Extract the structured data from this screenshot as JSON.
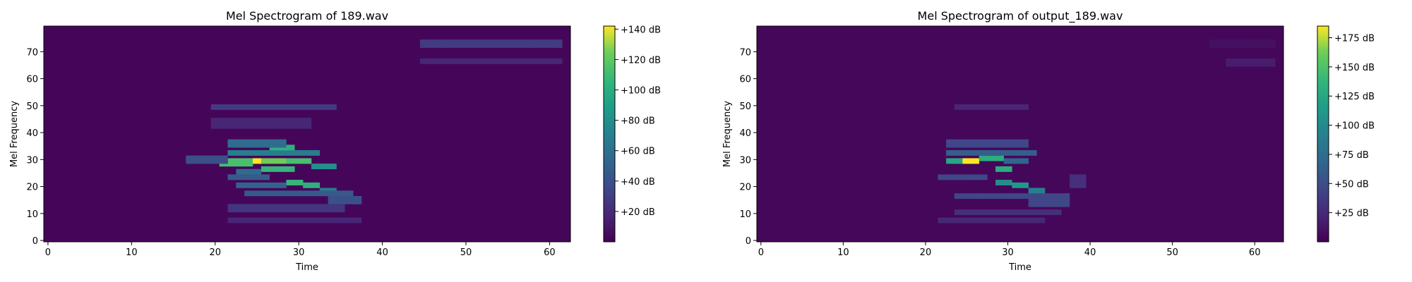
{
  "chart_data": [
    {
      "type": "heatmap",
      "title": "Mel Spectrogram of 189.wav",
      "xlabel": "Time",
      "ylabel": "Mel Frequency",
      "xlim": [
        -0.5,
        62.5
      ],
      "ylim": [
        -0.5,
        79.5
      ],
      "xticks": [
        0,
        10,
        20,
        30,
        40,
        50,
        60
      ],
      "yticks": [
        0,
        10,
        20,
        30,
        40,
        50,
        60,
        70
      ],
      "colormap": "viridis",
      "colorbar": {
        "min": 0,
        "max": 142,
        "ticks": [
          20,
          40,
          60,
          80,
          100,
          120,
          140
        ],
        "format": "+%d dB"
      },
      "background_db": 2,
      "blobs": [
        {
          "t": [
            21,
            25
          ],
          "f": [
            28,
            31
          ],
          "db": 100
        },
        {
          "t": [
            25,
            26
          ],
          "f": [
            29,
            31
          ],
          "db": 142
        },
        {
          "t": [
            26,
            29
          ],
          "f": [
            29,
            31
          ],
          "db": 110
        },
        {
          "t": [
            29,
            32
          ],
          "f": [
            29,
            31
          ],
          "db": 100
        },
        {
          "t": [
            32,
            35
          ],
          "f": [
            27,
            29
          ],
          "db": 70
        },
        {
          "t": [
            22,
            33
          ],
          "f": [
            32,
            34
          ],
          "db": 60
        },
        {
          "t": [
            27,
            30
          ],
          "f": [
            34,
            36
          ],
          "db": 90
        },
        {
          "t": [
            22,
            29
          ],
          "f": [
            35,
            38
          ],
          "db": 50
        },
        {
          "t": [
            26,
            30
          ],
          "f": [
            26,
            28
          ],
          "db": 95
        },
        {
          "t": [
            23,
            26
          ],
          "f": [
            25,
            27
          ],
          "db": 50
        },
        {
          "t": [
            22,
            27
          ],
          "f": [
            23,
            25
          ],
          "db": 40
        },
        {
          "t": [
            29,
            31
          ],
          "f": [
            21,
            23
          ],
          "db": 95
        },
        {
          "t": [
            31,
            33
          ],
          "f": [
            20,
            22
          ],
          "db": 90
        },
        {
          "t": [
            33,
            35
          ],
          "f": [
            18,
            20
          ],
          "db": 60
        },
        {
          "t": [
            23,
            29
          ],
          "f": [
            20,
            22
          ],
          "db": 45
        },
        {
          "t": [
            24,
            37
          ],
          "f": [
            17,
            19
          ],
          "db": 40
        },
        {
          "t": [
            34,
            38
          ],
          "f": [
            14,
            17
          ],
          "db": 35
        },
        {
          "t": [
            22,
            36
          ],
          "f": [
            11,
            14
          ],
          "db": 22
        },
        {
          "t": [
            22,
            38
          ],
          "f": [
            7,
            9
          ],
          "db": 15
        },
        {
          "t": [
            20,
            35
          ],
          "f": [
            49,
            51
          ],
          "db": 25
        },
        {
          "t": [
            20,
            32
          ],
          "f": [
            42,
            46
          ],
          "db": 15
        },
        {
          "t": [
            17,
            22
          ],
          "f": [
            29,
            32
          ],
          "db": 35
        },
        {
          "t": [
            45,
            62
          ],
          "f": [
            72,
            75
          ],
          "db": 25
        },
        {
          "t": [
            45,
            62
          ],
          "f": [
            66,
            68
          ],
          "db": 15
        }
      ]
    },
    {
      "type": "heatmap",
      "title": "Mel Spectrogram of output_189.wav",
      "xlabel": "Time",
      "ylabel": "Mel Frequency",
      "xlim": [
        -0.5,
        63.5
      ],
      "ylim": [
        -0.5,
        79.5
      ],
      "xticks": [
        0,
        10,
        20,
        30,
        40,
        50,
        60
      ],
      "yticks": [
        0,
        10,
        20,
        30,
        40,
        50,
        60,
        70
      ],
      "colormap": "viridis",
      "colorbar": {
        "min": 0,
        "max": 185,
        "ticks": [
          25,
          50,
          75,
          100,
          125,
          150,
          175
        ],
        "format": "+%d dB"
      },
      "background_db": 3,
      "blobs": [
        {
          "t": [
            23,
            25
          ],
          "f": [
            29,
            31
          ],
          "db": 110
        },
        {
          "t": [
            25,
            27
          ],
          "f": [
            29,
            31
          ],
          "db": 185
        },
        {
          "t": [
            27,
            30
          ],
          "f": [
            30,
            32
          ],
          "db": 115
        },
        {
          "t": [
            30,
            33
          ],
          "f": [
            29,
            31
          ],
          "db": 60
        },
        {
          "t": [
            29,
            31
          ],
          "f": [
            26,
            28
          ],
          "db": 115
        },
        {
          "t": [
            23,
            34
          ],
          "f": [
            32,
            34
          ],
          "db": 55
        },
        {
          "t": [
            23,
            33
          ],
          "f": [
            35,
            38
          ],
          "db": 40
        },
        {
          "t": [
            22,
            28
          ],
          "f": [
            23,
            25
          ],
          "db": 40
        },
        {
          "t": [
            29,
            31
          ],
          "f": [
            21,
            23
          ],
          "db": 90
        },
        {
          "t": [
            31,
            33
          ],
          "f": [
            20,
            22
          ],
          "db": 100
        },
        {
          "t": [
            33,
            35
          ],
          "f": [
            18,
            20
          ],
          "db": 80
        },
        {
          "t": [
            24,
            38
          ],
          "f": [
            16,
            18
          ],
          "db": 40
        },
        {
          "t": [
            33,
            38
          ],
          "f": [
            13,
            16
          ],
          "db": 40
        },
        {
          "t": [
            24,
            37
          ],
          "f": [
            10,
            12
          ],
          "db": 25
        },
        {
          "t": [
            22,
            35
          ],
          "f": [
            7,
            9
          ],
          "db": 20
        },
        {
          "t": [
            24,
            33
          ],
          "f": [
            49,
            51
          ],
          "db": 20
        },
        {
          "t": [
            38,
            40
          ],
          "f": [
            20,
            25
          ],
          "db": 25
        },
        {
          "t": [
            57,
            63
          ],
          "f": [
            65,
            68
          ],
          "db": 15
        },
        {
          "t": [
            55,
            63
          ],
          "f": [
            72,
            75
          ],
          "db": 8
        }
      ]
    }
  ]
}
